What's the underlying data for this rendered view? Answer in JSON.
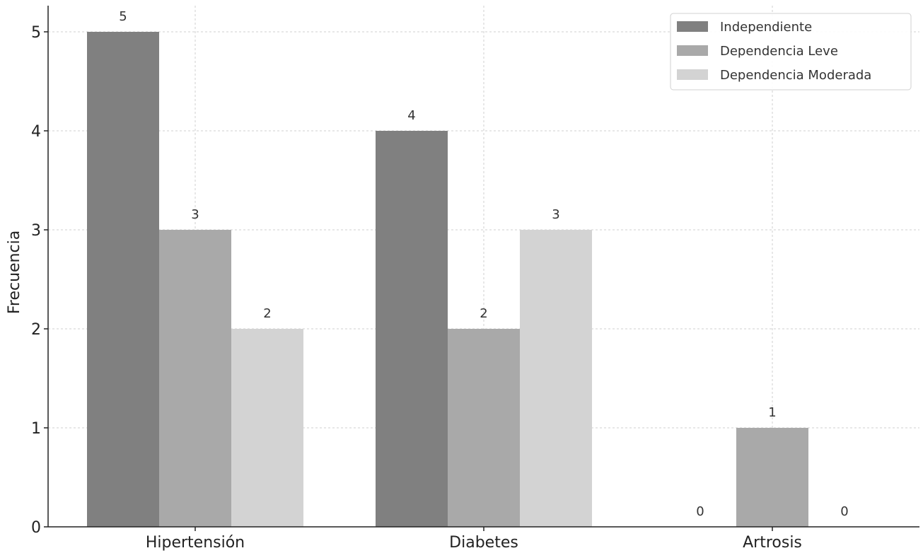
{
  "chart_data": {
    "type": "bar",
    "categories": [
      "Hipertensión",
      "Diabetes",
      "Artrosis"
    ],
    "series": [
      {
        "name": "Independiente",
        "values": [
          5,
          4,
          0
        ],
        "color": "#808080"
      },
      {
        "name": "Dependencia Leve",
        "values": [
          3,
          2,
          1
        ],
        "color": "#a9a9a9"
      },
      {
        "name": "Dependencia Moderada",
        "values": [
          2,
          3,
          0
        ],
        "color": "#d3d3d3"
      }
    ],
    "title": "",
    "xlabel": "",
    "ylabel": "Frecuencia",
    "ylim": [
      0,
      5.25
    ],
    "yticks": [
      0,
      1,
      2,
      3,
      4,
      5
    ],
    "grid": true,
    "legend_position": "top-right",
    "show_data_labels": true
  }
}
